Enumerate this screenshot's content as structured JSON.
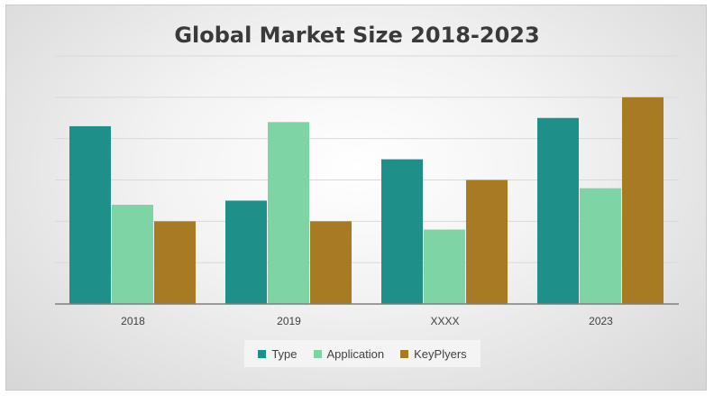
{
  "chart_data": {
    "type": "bar",
    "title": "Global Market Size 2018-2023",
    "categories": [
      "2018",
      "2019",
      "XXXX",
      "2023"
    ],
    "series": [
      {
        "name": "Type",
        "color": "#1f8f8a",
        "values": [
          4.3,
          2.5,
          3.5,
          4.5
        ]
      },
      {
        "name": "Application",
        "color": "#7ed4a4",
        "values": [
          2.4,
          4.4,
          1.8,
          2.8
        ]
      },
      {
        "name": "KeyPlyers",
        "color": "#a97a24",
        "values": [
          2.0,
          2.0,
          3.0,
          5.0
        ]
      }
    ],
    "ylim": [
      0,
      6
    ],
    "ytick_step": 1,
    "show_y_tick_labels": false,
    "grid": true,
    "legend_position": "bottom"
  }
}
